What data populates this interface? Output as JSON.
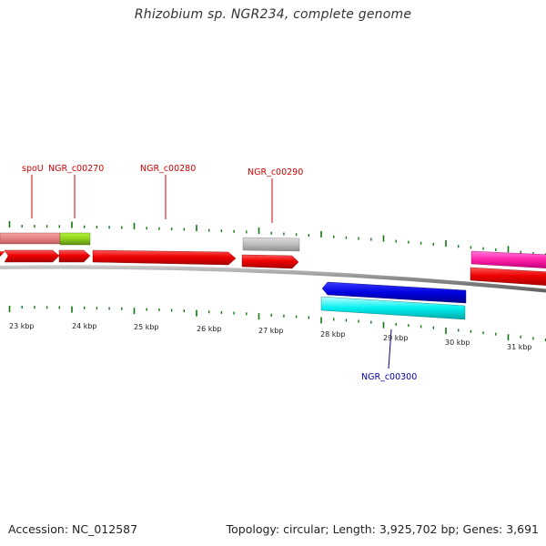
{
  "title": "Rhizobium sp. NGR234, complete genome",
  "footer": {
    "accession": "Accession: NC_012587",
    "summary": "Topology: circular; Length: 3,925,702 bp; Genes: 3,691"
  },
  "colors": {
    "label_red": "#cc0000",
    "label_blue": "#000099",
    "tick_green": "#117711",
    "backbone": "#888888"
  },
  "ruler_labels": [
    "23 kbp",
    "24 kbp",
    "25 kbp",
    "26 kbp",
    "27 kbp",
    "28 kbp",
    "29 kbp",
    "30 kbp",
    "31 kbp"
  ],
  "gene_labels": [
    {
      "id": "spoU",
      "text": "spoU",
      "strand": "forward"
    },
    {
      "id": "NGR_c00270",
      "text": "NGR_c00270",
      "strand": "forward"
    },
    {
      "id": "NGR_c00280",
      "text": "NGR_c00280",
      "strand": "forward"
    },
    {
      "id": "NGR_c00290",
      "text": "NGR_c00290",
      "strand": "forward"
    },
    {
      "id": "NGR_c00300",
      "text": "NGR_c00300",
      "strand": "reverse"
    }
  ]
}
